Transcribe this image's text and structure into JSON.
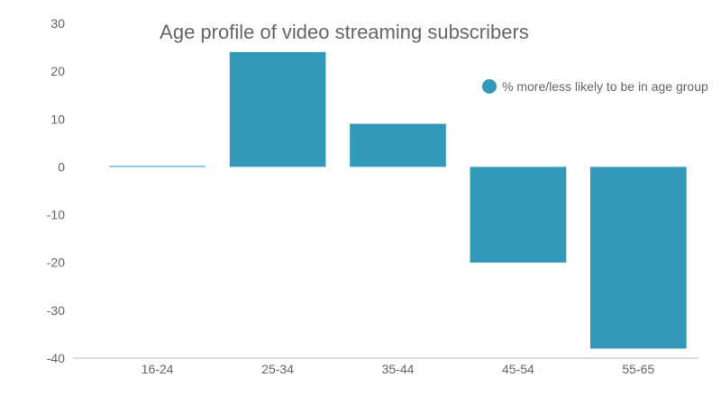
{
  "chart_data": {
    "type": "bar",
    "title": "Age profile of video streaming subscribers",
    "categories": [
      "16-24",
      "25-34",
      "35-44",
      "45-54",
      "55-65"
    ],
    "series": [
      {
        "name": "% more/less likely to be in age group",
        "values": [
          0.2,
          24,
          9,
          -20,
          -38
        ],
        "color": "#3399bb"
      }
    ],
    "ylim": [
      -40,
      30
    ],
    "yticks": [
      "30",
      "20",
      "10",
      "0",
      "-10",
      "-20",
      "-30",
      "-40"
    ],
    "xlabel": "",
    "ylabel": "",
    "grid": false,
    "legend_position": "right"
  }
}
